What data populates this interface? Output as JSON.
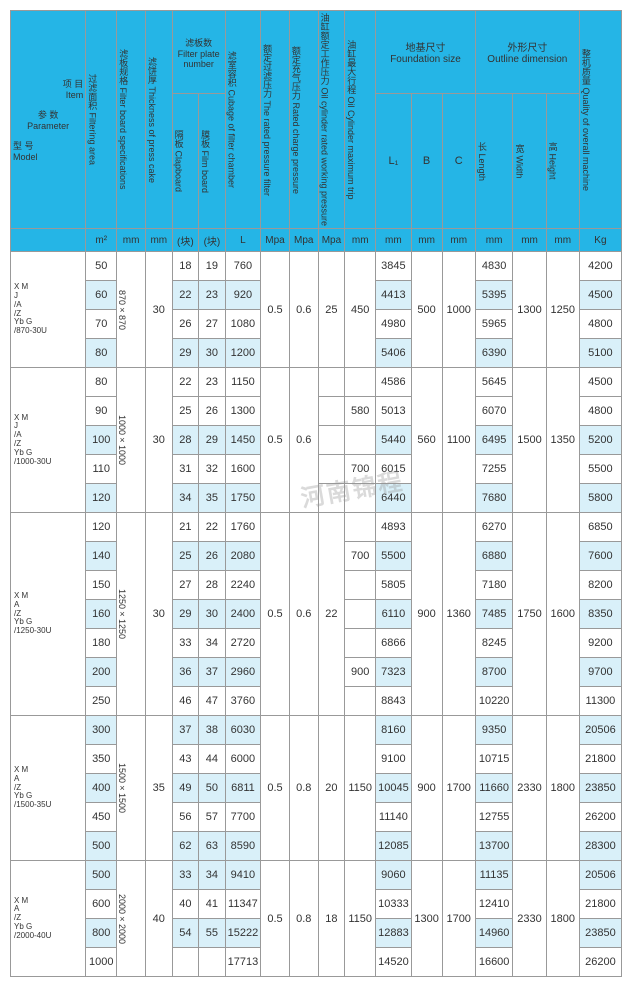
{
  "colors": {
    "header_bg": "#25b5e6",
    "highlight": "#d9f0f9",
    "border": "#999999",
    "text": "#333333"
  },
  "watermark": "河南锦程",
  "headers": {
    "model_cn": "型 号",
    "model_en": "Model",
    "param_cn": "参 数",
    "param_en": "Parameter",
    "item_cn": "项 目",
    "item_en": "Item",
    "cols": [
      {
        "cn": "过滤面积",
        "en": "Filtering area",
        "unit": "m²"
      },
      {
        "cn": "滤板规格",
        "en": "Filter board specifications",
        "unit": "mm"
      },
      {
        "cn": "滤饼厚",
        "en": "Thickness of press cake",
        "unit": "mm"
      },
      {
        "cn": "滤板数",
        "en": "Filter plate number",
        "sub": [
          {
            "cn": "隔板",
            "en": "Clapboard",
            "unit": "(块)"
          },
          {
            "cn": "膜板",
            "en": "Film board",
            "unit": "(块)"
          }
        ]
      },
      {
        "cn": "滤室容积",
        "en": "Cubage of filter chamber",
        "unit": "L"
      },
      {
        "cn": "额定过滤压力",
        "en": "The rated pressure filter",
        "unit": "Mpa"
      },
      {
        "cn": "额定充气压力",
        "en": "Rated charge pressure",
        "unit": "Mpa"
      },
      {
        "cn": "油缸额定工作压力",
        "en": "Oil cylinder rated working pressure",
        "unit": "Mpa"
      },
      {
        "cn": "油缸最大行程",
        "en": "Oil Cylinder maximum trip",
        "unit": "mm"
      },
      {
        "cn": "地基尺寸",
        "en": "Foundation size",
        "sub": [
          {
            "lbl": "L₁",
            "unit": "mm"
          },
          {
            "lbl": "B",
            "unit": "mm"
          },
          {
            "lbl": "C",
            "unit": "mm"
          }
        ]
      },
      {
        "cn": "外形尺寸",
        "en": "Outline dimension",
        "sub": [
          {
            "cn": "长",
            "en": "Length",
            "unit": "mm"
          },
          {
            "cn": "宽",
            "en": "Width",
            "unit": "mm"
          },
          {
            "cn": "高",
            "en": "Height",
            "unit": "mm"
          }
        ]
      },
      {
        "cn": "整机质量",
        "en": "Quality of overall machine",
        "unit": "Kg"
      }
    ]
  },
  "groups": [
    {
      "model": "X M(J/A/Z) Yb G/870-30U",
      "fb": "870×870",
      "tk": "30",
      "fp": "0.5",
      "cp": "0.6",
      "op": "25",
      "trip": "450",
      "B": "500",
      "C": "1000",
      "W": "1300",
      "H": "1250",
      "rows": [
        {
          "fa": "50",
          "clap": "18",
          "film": "19",
          "cub": "760",
          "L1": "3845",
          "L": "4830",
          "kg": "4200"
        },
        {
          "fa": "60",
          "clap": "22",
          "film": "23",
          "cub": "920",
          "L1": "4413",
          "L": "5395",
          "kg": "4500",
          "hl": true
        },
        {
          "fa": "70",
          "clap": "26",
          "film": "27",
          "cub": "1080",
          "L1": "4980",
          "L": "5965",
          "kg": "4800"
        },
        {
          "fa": "80",
          "clap": "29",
          "film": "30",
          "cub": "1200",
          "L1": "5406",
          "L": "6390",
          "kg": "5100",
          "hl": true
        }
      ]
    },
    {
      "model": "X M(J/A/Z) Yb G/1000-30U",
      "fb": "1000×1000",
      "tk": "30",
      "fp": "0.5",
      "cp": "0.6",
      "B": "560",
      "C": "1100",
      "W": "1500",
      "H": "1350",
      "rows": [
        {
          "fa": "80",
          "clap": "22",
          "film": "23",
          "cub": "1150",
          "L1": "4586",
          "L": "5645",
          "kg": "4500",
          "op": "",
          "trip": ""
        },
        {
          "fa": "90",
          "clap": "25",
          "film": "26",
          "cub": "1300",
          "L1": "5013",
          "L": "6070",
          "kg": "4800",
          "op": "",
          "trip": "580"
        },
        {
          "fa": "100",
          "clap": "28",
          "film": "29",
          "cub": "1450",
          "L1": "5440",
          "L": "6495",
          "kg": "5200",
          "hl": true,
          "op": "",
          "trip": ""
        },
        {
          "fa": "110",
          "clap": "31",
          "film": "32",
          "cub": "1600",
          "L1": "6015",
          "L": "7255",
          "kg": "5500",
          "op": "",
          "trip": "700"
        },
        {
          "fa": "120",
          "clap": "34",
          "film": "35",
          "cub": "1750",
          "L1": "6440",
          "L": "7680",
          "kg": "5800",
          "hl": true,
          "op": "",
          "trip": ""
        }
      ]
    },
    {
      "model": "X M(A/Z) Yb G/1250-30U",
      "fb": "1250×1250",
      "tk": "30",
      "fp": "0.5",
      "cp": "0.6",
      "op": "22",
      "B": "900",
      "C": "1360",
      "W": "1750",
      "H": "1600",
      "rows": [
        {
          "fa": "120",
          "clap": "21",
          "film": "22",
          "cub": "1760",
          "L1": "4893",
          "L": "6270",
          "kg": "6850",
          "trip": ""
        },
        {
          "fa": "140",
          "clap": "25",
          "film": "26",
          "cub": "2080",
          "L1": "5500",
          "L": "6880",
          "kg": "7600",
          "hl": true,
          "trip": "700"
        },
        {
          "fa": "150",
          "clap": "27",
          "film": "28",
          "cub": "2240",
          "L1": "5805",
          "L": "7180",
          "kg": "8200",
          "trip": ""
        },
        {
          "fa": "160",
          "clap": "29",
          "film": "30",
          "cub": "2400",
          "L1": "6110",
          "L": "7485",
          "kg": "8350",
          "hl": true,
          "trip": ""
        },
        {
          "fa": "180",
          "clap": "33",
          "film": "34",
          "cub": "2720",
          "L1": "6866",
          "L": "8245",
          "kg": "9200",
          "trip": ""
        },
        {
          "fa": "200",
          "clap": "36",
          "film": "37",
          "cub": "2960",
          "L1": "7323",
          "L": "8700",
          "kg": "9700",
          "hl": true,
          "trip": "900"
        },
        {
          "fa": "250",
          "clap": "46",
          "film": "47",
          "cub": "3760",
          "L1": "8843",
          "L": "10220",
          "kg": "11300",
          "trip": ""
        }
      ]
    },
    {
      "model": "X M(A/Z) Yb G/1500-35U",
      "fb": "1500×1500",
      "tk": "35",
      "fp": "0.5",
      "cp": "0.8",
      "op": "20",
      "trip": "1150",
      "B": "900",
      "C": "1700",
      "W": "2330",
      "H": "1800",
      "rows": [
        {
          "fa": "300",
          "clap": "37",
          "film": "38",
          "cub": "6030",
          "L1": "8160",
          "L": "9350",
          "kg": "20506",
          "hl": true
        },
        {
          "fa": "350",
          "clap": "43",
          "film": "44",
          "cub": "6000",
          "L1": "9100",
          "L": "10715",
          "kg": "21800"
        },
        {
          "fa": "400",
          "clap": "49",
          "film": "50",
          "cub": "6811",
          "L1": "10045",
          "L": "11660",
          "kg": "23850",
          "hl": true
        },
        {
          "fa": "450",
          "clap": "56",
          "film": "57",
          "cub": "7700",
          "L1": "11140",
          "L": "12755",
          "kg": "26200"
        },
        {
          "fa": "500",
          "clap": "62",
          "film": "63",
          "cub": "8590",
          "L1": "12085",
          "L": "13700",
          "kg": "28300",
          "hl": true
        }
      ]
    },
    {
      "model": "X M(A/Z) Yb G/2000-40U",
      "fb": "2000×2000",
      "tk": "40",
      "fp": "0.5",
      "cp": "0.8",
      "op": "18",
      "trip": "1150",
      "B": "1300",
      "C": "1700",
      "W": "2330",
      "H": "1800",
      "rows": [
        {
          "fa": "500",
          "clap": "33",
          "film": "34",
          "cub": "9410",
          "L1": "9060",
          "L": "11135",
          "kg": "20506",
          "hl": true
        },
        {
          "fa": "600",
          "clap": "40",
          "film": "41",
          "cub": "11347",
          "L1": "10333",
          "L": "12410",
          "kg": "21800"
        },
        {
          "fa": "800",
          "clap": "54",
          "film": "55",
          "cub": "15222",
          "L1": "12883",
          "L": "14960",
          "kg": "23850",
          "hl": true
        },
        {
          "fa": "1000",
          "clap": "",
          "film": "",
          "cub": "17713",
          "L1": "14520",
          "L": "16600",
          "kg": "26200"
        }
      ]
    }
  ]
}
